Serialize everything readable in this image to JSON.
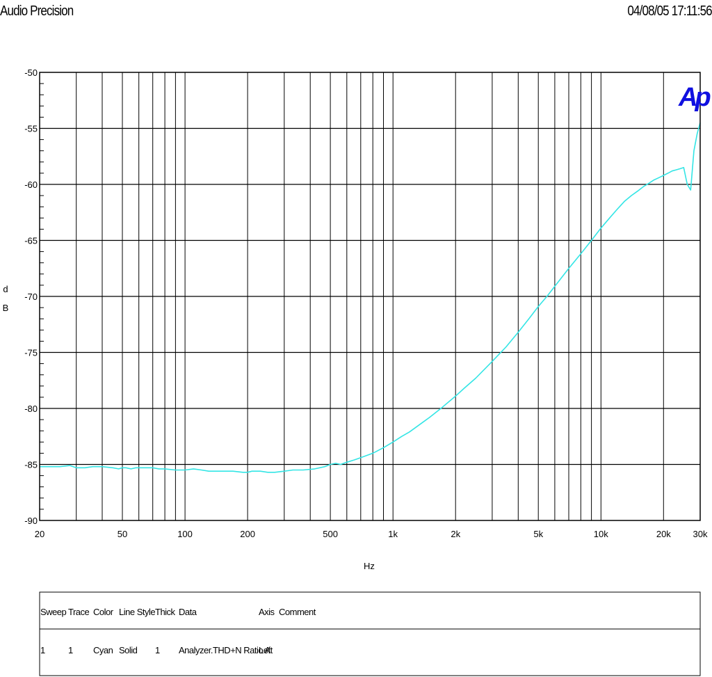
{
  "header": {
    "left_title": "Audio Precision",
    "right_timestamp": "04/08/05 17:11:56"
  },
  "logo_text": "Ap",
  "colors": {
    "trace": "#33E5E5",
    "grid": "#000000",
    "logo": "#1010E0",
    "background": "#FFFFFF"
  },
  "chart_data": {
    "type": "line",
    "x_scale": "log",
    "xlim": [
      20,
      30000
    ],
    "ylim": [
      -90,
      -50
    ],
    "grid": true,
    "xlabel": "Hz",
    "ylabel": "dB",
    "ylabel_chars": [
      "d",
      "B"
    ],
    "y_ticks": [
      {
        "value": -50,
        "label": "-50"
      },
      {
        "value": -55,
        "label": "-55"
      },
      {
        "value": -60,
        "label": "-60"
      },
      {
        "value": -65,
        "label": "-65"
      },
      {
        "value": -70,
        "label": "-70"
      },
      {
        "value": -75,
        "label": "-75"
      },
      {
        "value": -80,
        "label": "-80"
      },
      {
        "value": -85,
        "label": "-85"
      },
      {
        "value": -90,
        "label": "-90"
      }
    ],
    "x_ticks": [
      {
        "value": 20,
        "label": "20"
      },
      {
        "value": 50,
        "label": "50"
      },
      {
        "value": 100,
        "label": "100"
      },
      {
        "value": 200,
        "label": "200"
      },
      {
        "value": 500,
        "label": "500"
      },
      {
        "value": 1000,
        "label": "1k"
      },
      {
        "value": 2000,
        "label": "2k"
      },
      {
        "value": 5000,
        "label": "5k"
      },
      {
        "value": 10000,
        "label": "10k"
      },
      {
        "value": 20000,
        "label": "20k"
      },
      {
        "value": 30000,
        "label": "30k"
      }
    ],
    "x_gridlines": [
      30,
      40,
      50,
      60,
      70,
      80,
      90,
      100,
      200,
      300,
      400,
      500,
      600,
      700,
      800,
      900,
      1000,
      2000,
      3000,
      4000,
      5000,
      6000,
      7000,
      8000,
      9000,
      10000,
      20000
    ],
    "y_gridlines": [
      -55,
      -60,
      -65,
      -70,
      -75,
      -80,
      -85
    ],
    "series": [
      {
        "color": "#33E5E5",
        "points": [
          [
            20,
            -85.2
          ],
          [
            25,
            -85.2
          ],
          [
            28,
            -85.1
          ],
          [
            30,
            -85.3
          ],
          [
            33,
            -85.3
          ],
          [
            36,
            -85.2
          ],
          [
            40,
            -85.2
          ],
          [
            45,
            -85.3
          ],
          [
            48,
            -85.4
          ],
          [
            50,
            -85.3
          ],
          [
            52,
            -85.3
          ],
          [
            55,
            -85.4
          ],
          [
            58,
            -85.3
          ],
          [
            60,
            -85.3
          ],
          [
            65,
            -85.3
          ],
          [
            70,
            -85.3
          ],
          [
            75,
            -85.4
          ],
          [
            80,
            -85.4
          ],
          [
            90,
            -85.5
          ],
          [
            100,
            -85.5
          ],
          [
            110,
            -85.4
          ],
          [
            120,
            -85.5
          ],
          [
            130,
            -85.6
          ],
          [
            150,
            -85.6
          ],
          [
            170,
            -85.6
          ],
          [
            190,
            -85.7
          ],
          [
            200,
            -85.7
          ],
          [
            210,
            -85.6
          ],
          [
            230,
            -85.6
          ],
          [
            250,
            -85.7
          ],
          [
            270,
            -85.7
          ],
          [
            300,
            -85.6
          ],
          [
            330,
            -85.5
          ],
          [
            370,
            -85.5
          ],
          [
            420,
            -85.4
          ],
          [
            470,
            -85.2
          ],
          [
            500,
            -85.0
          ],
          [
            530,
            -84.9
          ],
          [
            560,
            -85.0
          ],
          [
            600,
            -84.8
          ],
          [
            650,
            -84.6
          ],
          [
            700,
            -84.4
          ],
          [
            800,
            -84.0
          ],
          [
            900,
            -83.5
          ],
          [
            1000,
            -83.0
          ],
          [
            1100,
            -82.5
          ],
          [
            1200,
            -82.1
          ],
          [
            1400,
            -81.2
          ],
          [
            1500,
            -80.8
          ],
          [
            1700,
            -80.0
          ],
          [
            2000,
            -78.9
          ],
          [
            2200,
            -78.2
          ],
          [
            2500,
            -77.3
          ],
          [
            3000,
            -75.8
          ],
          [
            3500,
            -74.5
          ],
          [
            4000,
            -73.2
          ],
          [
            4500,
            -72.0
          ],
          [
            5000,
            -70.9
          ],
          [
            5500,
            -70.0
          ],
          [
            6000,
            -69.1
          ],
          [
            7000,
            -67.5
          ],
          [
            8000,
            -66.2
          ],
          [
            9000,
            -65.0
          ],
          [
            10000,
            -63.9
          ],
          [
            11000,
            -63.0
          ],
          [
            12000,
            -62.2
          ],
          [
            13000,
            -61.5
          ],
          [
            14000,
            -61.0
          ],
          [
            15000,
            -60.6
          ],
          [
            16000,
            -60.2
          ],
          [
            17000,
            -59.9
          ],
          [
            18000,
            -59.6
          ],
          [
            19000,
            -59.4
          ],
          [
            20000,
            -59.2
          ],
          [
            21000,
            -59.0
          ],
          [
            22000,
            -58.8
          ],
          [
            23000,
            -58.7
          ],
          [
            24000,
            -58.6
          ],
          [
            25000,
            -58.5
          ],
          [
            26000,
            -60.0
          ],
          [
            27000,
            -60.5
          ],
          [
            28000,
            -57.0
          ],
          [
            29000,
            -55.5
          ],
          [
            30000,
            -54.5
          ]
        ]
      }
    ]
  },
  "legend": {
    "headers": [
      "Sweep",
      "Trace",
      "Color",
      "Line Style",
      "Thick",
      "Data",
      "Axis",
      "Comment"
    ],
    "rows": [
      [
        "1",
        "1",
        "Cyan",
        "Solid",
        "1",
        "Analyzer.THD+N Ratio A",
        "Left",
        ""
      ]
    ]
  }
}
